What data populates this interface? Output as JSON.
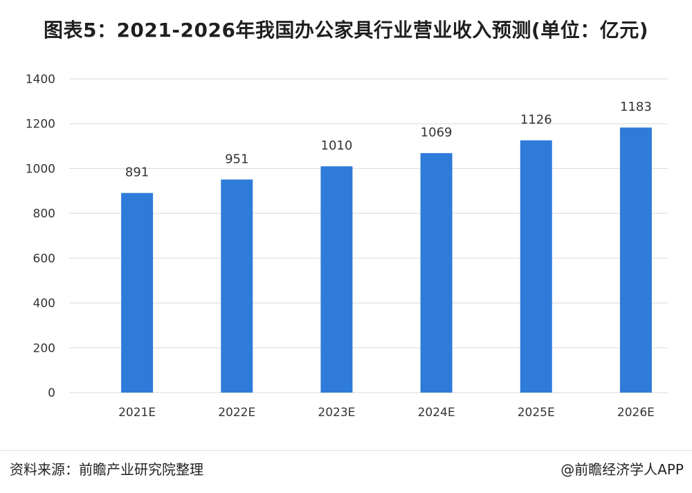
{
  "chart_data": {
    "type": "bar",
    "title": "图表5：2021-2026年我国办公家具行业营业收入预测(单位：亿元)",
    "categories": [
      "2021E",
      "2022E",
      "2023E",
      "2024E",
      "2025E",
      "2026E"
    ],
    "values": [
      891,
      951,
      1010,
      1069,
      1126,
      1183
    ],
    "ylim": [
      0,
      1400
    ],
    "yticks": [
      0,
      200,
      400,
      600,
      800,
      1000,
      1200,
      1400
    ],
    "xlabel": "",
    "ylabel": "",
    "grid": true,
    "legend": "none",
    "bar_color": "#2f7bd9",
    "data_labels": true
  },
  "footer": {
    "source": "资料来源：前瞻产业研究院整理",
    "credit": "@前瞻经济学人APP"
  },
  "watermark": "前瞻产业研究院"
}
